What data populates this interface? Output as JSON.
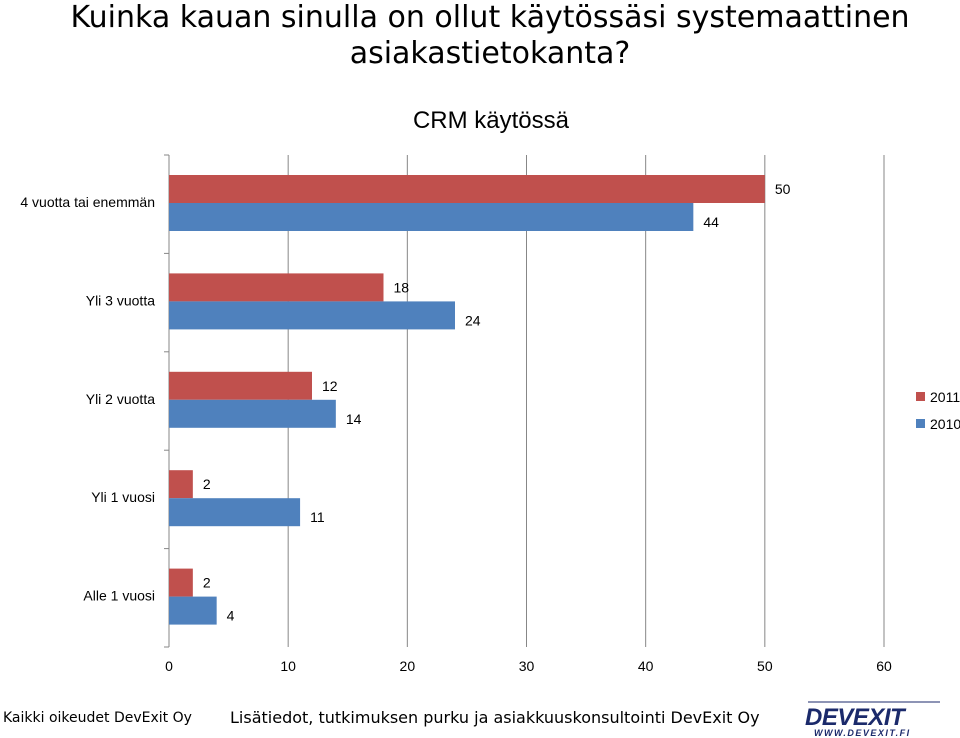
{
  "slide": {
    "title_line1": "Kuinka kauan sinulla on ollut käytössäsi systemaattinen",
    "title_line2": "asiakastietokanta?"
  },
  "chart_data": {
    "type": "bar",
    "orientation": "horizontal",
    "title": "CRM käytössä",
    "categories": [
      "4 vuotta tai enemmän",
      "Yli 3 vuotta",
      "Yli 2 vuotta",
      "Yli 1 vuosi",
      "Alle 1 vuosi"
    ],
    "series": [
      {
        "name": "2011",
        "color": "#c0504d",
        "values": [
          50,
          18,
          12,
          2,
          2
        ]
      },
      {
        "name": "2010",
        "color": "#4f81bd",
        "values": [
          44,
          24,
          14,
          11,
          4
        ]
      }
    ],
    "xlim": [
      0,
      60
    ],
    "xticks": [
      0,
      10,
      20,
      30,
      40,
      50,
      60
    ],
    "grid": true,
    "legend_position": "right"
  },
  "footer": {
    "copyright": "Kaikki oikeudet DevExit Oy",
    "info": "Lisätiedot, tutkimuksen purku ja asiakkuuskonsultointi DevExit Oy"
  },
  "logo": {
    "name": "DEVEXIT",
    "url_text": "WWW.DEVEXIT.FI",
    "color": "#1b2a6b"
  }
}
